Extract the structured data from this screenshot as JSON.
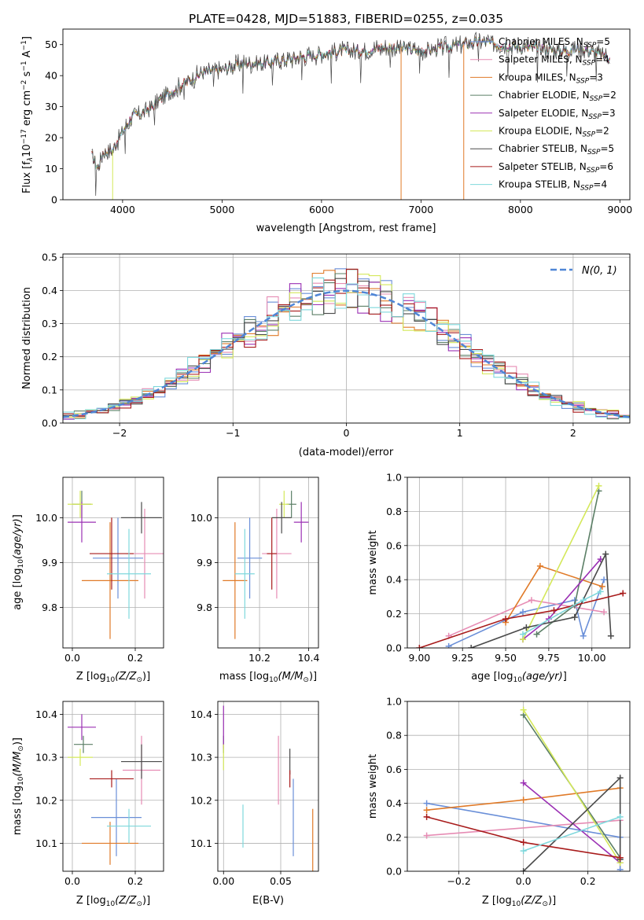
{
  "figure_title": "PLATE=0428, MJD=51883, FIBERID=0255, z=0.035",
  "models": [
    {
      "name": "Chabrier MILES",
      "nssp": "5",
      "color": "#6a8fd8"
    },
    {
      "name": "Salpeter MILES",
      "nssp": "4",
      "color": "#e68cb4"
    },
    {
      "name": "Kroupa MILES",
      "nssp": "3",
      "color": "#e07a28"
    },
    {
      "name": "Chabrier ELODIE",
      "nssp": "2",
      "color": "#5b7f66"
    },
    {
      "name": "Salpeter ELODIE",
      "nssp": "3",
      "color": "#9b30b4"
    },
    {
      "name": "Kroupa ELODIE",
      "nssp": "2",
      "color": "#d4e85a"
    },
    {
      "name": "Chabrier STELIB",
      "nssp": "5",
      "color": "#4a4a4a"
    },
    {
      "name": "Salpeter STELIB",
      "nssp": "6",
      "color": "#a81b1b"
    },
    {
      "name": "Kroupa STELIB",
      "nssp": "4",
      "color": "#7fd8dc"
    }
  ],
  "chart_data": [
    {
      "id": "spectrum",
      "type": "line",
      "title": "PLATE=0428, MJD=51883, FIBERID=0255, z=0.035",
      "xlabel": "wavelength [Angstrom, rest frame]",
      "ylabel": "Flux [f_λ 10^-17 erg cm^-2 s^-1 A^-1]",
      "xlim": [
        3400,
        9100
      ],
      "ylim": [
        0,
        55
      ],
      "xticks": [
        4000,
        5000,
        6000,
        7000,
        8000,
        9000
      ],
      "yticks": [
        0,
        10,
        20,
        30,
        40,
        50
      ],
      "grid": false,
      "legend": "right",
      "data_x": [
        3700,
        3750,
        3800,
        3900,
        4000,
        4100,
        4200,
        4300,
        4400,
        4500,
        4600,
        4800,
        5000,
        5200,
        5400,
        5600,
        5800,
        6000,
        6200,
        6400,
        6600,
        6800,
        7000,
        7200,
        7400,
        7600,
        7800,
        8000,
        8200,
        8400,
        8600,
        8800,
        8900
      ],
      "data_y": [
        14,
        10,
        15,
        16,
        22,
        27,
        28,
        30,
        33,
        35,
        37,
        41,
        42,
        44,
        44,
        45,
        46,
        47,
        48,
        48,
        49,
        49,
        48,
        49,
        50,
        51,
        50,
        49,
        49,
        48,
        49,
        47,
        46
      ]
    },
    {
      "id": "residuals",
      "type": "line",
      "xlabel": "(data-model)/error",
      "ylabel": "Normed distribution",
      "xlim": [
        -2.5,
        2.5
      ],
      "ylim": [
        0,
        0.51
      ],
      "xticks": [
        -2,
        -1,
        0,
        1,
        2
      ],
      "yticks": [
        0.0,
        0.1,
        0.2,
        0.3,
        0.4,
        0.5
      ],
      "grid": true,
      "legend": "top-right",
      "legend_label": "N(0, 1)"
    },
    {
      "id": "age_vs_Z",
      "type": "scatter",
      "xlabel": "Z [log10(Z/Z⊙)]",
      "ylabel": "age [log10(age/yr)]",
      "xlim": [
        -0.03,
        0.29
      ],
      "ylim": [
        9.71,
        10.09
      ],
      "xticks": [
        0.0,
        0.2
      ],
      "yticks": [
        9.8,
        9.9,
        10.0
      ],
      "grid": true,
      "points": [
        {
          "x": 0.145,
          "y": 9.91,
          "xerr": 0.08,
          "yerr": 0.09
        },
        {
          "x": 0.23,
          "y": 9.92,
          "xerr": 0.06,
          "yerr": 0.1
        },
        {
          "x": 0.12,
          "y": 9.86,
          "xerr": 0.09,
          "yerr": 0.13
        },
        {
          "x": 0.03,
          "y": 10.03,
          "xerr": 0.03,
          "yerr": 0.03
        },
        {
          "x": 0.03,
          "y": 9.99,
          "xerr": 0.045,
          "yerr": 0.045
        },
        {
          "x": 0.025,
          "y": 10.03,
          "xerr": 0.04,
          "yerr": 0.03
        },
        {
          "x": 0.22,
          "y": 10.0,
          "xerr": 0.065,
          "yerr": 0.035
        },
        {
          "x": 0.125,
          "y": 9.92,
          "xerr": 0.07,
          "yerr": 0.08
        },
        {
          "x": 0.18,
          "y": 9.875,
          "xerr": 0.07,
          "yerr": 0.1
        }
      ]
    },
    {
      "id": "age_vs_mass",
      "type": "scatter",
      "xlabel": "mass [log10(M/M⊙)]",
      "ylabel": "",
      "xlim": [
        10.03,
        10.44
      ],
      "ylim": [
        9.71,
        10.09
      ],
      "xticks": [
        10.2,
        10.4
      ],
      "yticks": [
        9.8,
        9.9,
        10.0
      ],
      "grid": true,
      "points": [
        {
          "x": 10.16,
          "y": 9.91,
          "xerr": 0.05,
          "yerr": 0.09
        },
        {
          "x": 10.27,
          "y": 9.92,
          "xerr": 0.06,
          "yerr": 0.1
        },
        {
          "x": 10.1,
          "y": 9.86,
          "xerr": 0.05,
          "yerr": 0.13
        },
        {
          "x": 10.33,
          "y": 10.03,
          "xerr": 0.02,
          "yerr": 0.03
        },
        {
          "x": 10.37,
          "y": 9.99,
          "xerr": 0.03,
          "yerr": 0.045
        },
        {
          "x": 10.3,
          "y": 10.03,
          "xerr": 0.02,
          "yerr": 0.03
        },
        {
          "x": 10.29,
          "y": 10.0,
          "xerr": 0.04,
          "yerr": 0.035
        },
        {
          "x": 10.25,
          "y": 9.92,
          "xerr": 0.02,
          "yerr": 0.08
        },
        {
          "x": 10.14,
          "y": 9.875,
          "xerr": 0.04,
          "yerr": 0.1
        }
      ]
    },
    {
      "id": "weight_vs_age",
      "type": "line",
      "xlabel": "age [log10(age/yr)]",
      "ylabel": "mass weight",
      "xlim": [
        8.93,
        10.22
      ],
      "ylim": [
        0,
        1
      ],
      "xticks": [
        9.0,
        9.25,
        9.5,
        9.75,
        10.0
      ],
      "yticks": [
        0.0,
        0.2,
        0.4,
        0.6,
        0.8,
        1.0
      ],
      "grid": true,
      "series": [
        {
          "x": [
            9.17,
            9.6,
            9.9,
            9.95,
            10.07
          ],
          "y": [
            0.01,
            0.21,
            0.28,
            0.07,
            0.4
          ]
        },
        {
          "x": [
            9.17,
            9.65,
            10.07
          ],
          "y": [
            0.07,
            0.28,
            0.21
          ]
        },
        {
          "x": [
            9.5,
            9.7,
            10.06
          ],
          "y": [
            0.15,
            0.48,
            0.36
          ]
        },
        {
          "x": [
            9.68,
            9.9,
            10.04
          ],
          "y": [
            0.08,
            0.25,
            0.92
          ]
        },
        {
          "x": [
            9.6,
            9.75,
            10.05
          ],
          "y": [
            0.05,
            0.17,
            0.52
          ]
        },
        {
          "x": [
            9.6,
            10.04
          ],
          "y": [
            0.05,
            0.95
          ]
        },
        {
          "x": [
            9.3,
            9.62,
            9.9,
            10.08,
            10.11
          ],
          "y": [
            0.0,
            0.12,
            0.18,
            0.55,
            0.07
          ]
        },
        {
          "x": [
            9.0,
            9.5,
            9.78,
            10.18
          ],
          "y": [
            0.0,
            0.17,
            0.22,
            0.32
          ]
        },
        {
          "x": [
            9.6,
            9.95,
            10.05
          ],
          "y": [
            0.08,
            0.28,
            0.33
          ]
        }
      ]
    },
    {
      "id": "mass_vs_Z",
      "type": "scatter",
      "xlabel": "Z [log10(Z/Z⊙)]",
      "ylabel": "mass [log10(M/M⊙)]",
      "xlim": [
        -0.03,
        0.29
      ],
      "ylim": [
        10.035,
        10.43
      ],
      "xticks": [
        0.0,
        0.2
      ],
      "yticks": [
        10.1,
        10.2,
        10.3,
        10.4
      ],
      "grid": true,
      "points": [
        {
          "x": 0.14,
          "y": 10.16,
          "xerr": 0.08,
          "yerr": 0.09
        },
        {
          "x": 0.22,
          "y": 10.27,
          "xerr": 0.06,
          "yerr": 0.08
        },
        {
          "x": 0.12,
          "y": 10.1,
          "xerr": 0.09,
          "yerr": 0.05
        },
        {
          "x": 0.035,
          "y": 10.33,
          "xerr": 0.03,
          "yerr": 0.02
        },
        {
          "x": 0.03,
          "y": 10.37,
          "xerr": 0.045,
          "yerr": 0.03
        },
        {
          "x": 0.025,
          "y": 10.3,
          "xerr": 0.04,
          "yerr": 0.02
        },
        {
          "x": 0.22,
          "y": 10.29,
          "xerr": 0.065,
          "yerr": 0.04
        },
        {
          "x": 0.125,
          "y": 10.25,
          "xerr": 0.07,
          "yerr": 0.02
        },
        {
          "x": 0.18,
          "y": 10.14,
          "xerr": 0.07,
          "yerr": 0.04
        }
      ]
    },
    {
      "id": "mass_vs_ebv",
      "type": "scatter",
      "xlabel": "E(B-V)",
      "ylabel": "",
      "xlim": [
        -0.005,
        0.083
      ],
      "ylim": [
        10.035,
        10.43
      ],
      "xticks": [
        0.0,
        0.05
      ],
      "yticks": [
        10.1,
        10.2,
        10.3,
        10.4
      ],
      "grid": true,
      "points": [
        {
          "x": 0.061,
          "y": 10.16,
          "yerr": 0.09
        },
        {
          "x": 0.048,
          "y": 10.27,
          "yerr": 0.08
        },
        {
          "x": 0.078,
          "y": 10.1,
          "yerr": 0.08
        },
        {
          "x": 0.0,
          "y": 10.33,
          "yerr": 0.02
        },
        {
          "x": 0.0,
          "y": 10.37,
          "yerr": 0.05
        },
        {
          "x": 0.0,
          "y": 10.3,
          "yerr": 0.03
        },
        {
          "x": 0.058,
          "y": 10.29,
          "yerr": 0.03
        },
        {
          "x": 0.058,
          "y": 10.25,
          "yerr": 0.02
        },
        {
          "x": 0.017,
          "y": 10.14,
          "yerr": 0.05
        }
      ]
    },
    {
      "id": "weight_vs_Z",
      "type": "line",
      "xlabel": "Z [log10(Z/Z⊙)]",
      "ylabel": "mass weight",
      "xlim": [
        -0.36,
        0.33
      ],
      "ylim": [
        0,
        1
      ],
      "xticks": [
        -0.2,
        0.0,
        0.2
      ],
      "yticks": [
        0.0,
        0.2,
        0.4,
        0.6,
        0.8,
        1.0
      ],
      "grid": true,
      "series": [
        {
          "x": [
            -0.3,
            0.3,
            0.3,
            0.3
          ],
          "y": [
            0.4,
            0.2,
            0.07,
            0.01
          ]
        },
        {
          "x": [
            -0.3,
            0.3
          ],
          "y": [
            0.21,
            0.3
          ]
        },
        {
          "x": [
            -0.3,
            0.0,
            0.3
          ],
          "y": [
            0.36,
            0.42,
            0.49
          ]
        },
        {
          "x": [
            0.0,
            0.3
          ],
          "y": [
            0.92,
            0.08
          ]
        },
        {
          "x": [
            0.0,
            0.3
          ],
          "y": [
            0.52,
            0.05
          ]
        },
        {
          "x": [
            0.0,
            0.3
          ],
          "y": [
            0.95,
            0.05
          ]
        },
        {
          "x": [
            0.0,
            0.3,
            0.3
          ],
          "y": [
            0.0,
            0.55,
            0.07
          ]
        },
        {
          "x": [
            -0.3,
            0.0,
            0.3
          ],
          "y": [
            0.32,
            0.17,
            0.08
          ]
        },
        {
          "x": [
            0.0,
            0.3
          ],
          "y": [
            0.12,
            0.32
          ]
        }
      ]
    }
  ]
}
